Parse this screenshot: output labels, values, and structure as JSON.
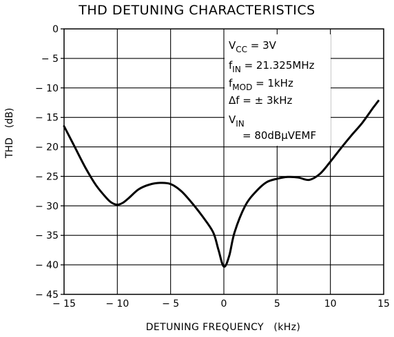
{
  "chart_data": {
    "type": "line",
    "title": "THD DETUNING CHARACTERISTICS",
    "xlabel": "DETUNING FREQUENCY (kHz)",
    "ylabel": "THD (dB)",
    "xlim": [
      -15,
      15
    ],
    "ylim": [
      -45,
      0
    ],
    "grid": true,
    "x_ticks": [
      -15,
      -10,
      -5,
      0,
      5,
      10,
      15
    ],
    "x_tick_labels": [
      "− 15",
      "− 10",
      "− 5",
      "0",
      "5",
      "10",
      "15"
    ],
    "y_ticks": [
      0,
      -5,
      -10,
      -15,
      -20,
      -25,
      -30,
      -35,
      -40,
      -45
    ],
    "y_tick_labels": [
      "0",
      "− 5",
      "− 10",
      "− 15",
      "− 20",
      "− 25",
      "− 30",
      "− 35",
      "− 40",
      "− 45"
    ],
    "series": [
      {
        "x": [
          -15,
          -14,
          -13,
          -12,
          -11,
          -10.5,
          -10,
          -9.5,
          -9,
          -8,
          -7,
          -6,
          -5,
          -4,
          -3,
          -2,
          -1,
          -0.5,
          0,
          0.5,
          1,
          2,
          3,
          4,
          5,
          6,
          7,
          8,
          9,
          10,
          11,
          12,
          13,
          14,
          14.5
        ],
        "y": [
          -16.5,
          -20,
          -23.5,
          -26.5,
          -28.7,
          -29.5,
          -29.8,
          -29.5,
          -28.8,
          -27.2,
          -26.4,
          -26.1,
          -26.3,
          -27.5,
          -29.5,
          -31.8,
          -34.5,
          -37.5,
          -40.3,
          -38.5,
          -34.5,
          -30,
          -27.6,
          -26,
          -25.4,
          -25.1,
          -25.2,
          -25.6,
          -24.6,
          -22.5,
          -20.2,
          -18,
          -15.9,
          -13.4,
          -12.2
        ]
      }
    ],
    "annotations": [
      {
        "base": "V",
        "sub": "CC",
        "rest": " = 3V"
      },
      {
        "base": "f",
        "sub": "IN",
        "rest": " = 21.325MHz"
      },
      {
        "base": "f",
        "sub": "MOD",
        "rest": " = 1kHz"
      },
      {
        "base": "Δf = ± 3kHz",
        "sub": "",
        "rest": ""
      },
      {
        "base": "V",
        "sub": "IN",
        "rest": ""
      },
      {
        "base": "= 80dBμVEMF",
        "sub": "",
        "rest": ""
      }
    ]
  }
}
